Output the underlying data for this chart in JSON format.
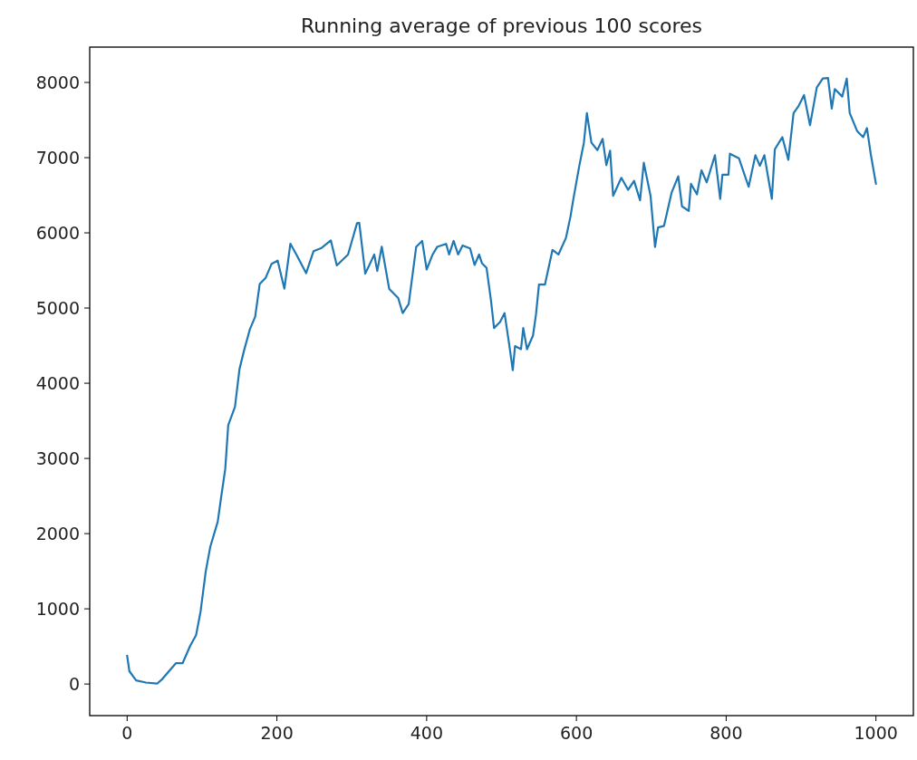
{
  "chart_data": {
    "type": "line",
    "title": "Running average of previous 100 scores",
    "xlim": [
      -50,
      1050
    ],
    "ylim": [
      -420,
      8470
    ],
    "xticks": [
      0,
      200,
      400,
      600,
      800,
      1000
    ],
    "yticks": [
      0,
      1000,
      2000,
      3000,
      4000,
      5000,
      6000,
      7000,
      8000
    ],
    "grid": false,
    "series": [
      {
        "color": "#1f77b4",
        "x": [
          0,
          3,
          12,
          25,
          40,
          47,
          65,
          74,
          84,
          92,
          98,
          105,
          111,
          121,
          125,
          131,
          135,
          144,
          150,
          156,
          164,
          171,
          177,
          185,
          193,
          201,
          210,
          218,
          226,
          239,
          249,
          259,
          272,
          280,
          295,
          307,
          310,
          318,
          330,
          334,
          340,
          350,
          362,
          368,
          376,
          386,
          394,
          400,
          408,
          414,
          426,
          430,
          436,
          442,
          448,
          458,
          464,
          470,
          474,
          480,
          486,
          490,
          498,
          504,
          510,
          515,
          518,
          526,
          529,
          534,
          542,
          546,
          550,
          558,
          568,
          576,
          586,
          592,
          596,
          604,
          610,
          614,
          620,
          628,
          635,
          640,
          645,
          649,
          660,
          669,
          677,
          685,
          690,
          699,
          705,
          709,
          717,
          727,
          736,
          741,
          750,
          753,
          761,
          767,
          774,
          785,
          792,
          795,
          803,
          805,
          817,
          830,
          839,
          845,
          851,
          861,
          865,
          875,
          883,
          890,
          897,
          904,
          912,
          921,
          929,
          936,
          941,
          945,
          955,
          961,
          965,
          975,
          983,
          988,
          993,
          1000
        ],
        "values": [
          377,
          170,
          48,
          20,
          5,
          67,
          276,
          276,
          504,
          648,
          960,
          1500,
          1823,
          2159,
          2447,
          2858,
          3442,
          3686,
          4186,
          4430,
          4720,
          4885,
          5319,
          5402,
          5589,
          5630,
          5257,
          5856,
          5712,
          5464,
          5757,
          5795,
          5900,
          5567,
          5712,
          6128,
          6132,
          5457,
          5712,
          5493,
          5817,
          5253,
          5133,
          4933,
          5053,
          5813,
          5893,
          5513,
          5712,
          5813,
          5853,
          5712,
          5893,
          5712,
          5832,
          5793,
          5573,
          5712,
          5593,
          5533,
          5093,
          4734,
          4813,
          4933,
          4533,
          4174,
          4494,
          4453,
          4734,
          4453,
          4633,
          4914,
          5313,
          5313,
          5772,
          5712,
          5933,
          6213,
          6453,
          6900,
          7200,
          7592,
          7200,
          7100,
          7250,
          6900,
          7092,
          6492,
          6732,
          6572,
          6692,
          6432,
          6932,
          6492,
          5813,
          6072,
          6093,
          6532,
          6752,
          6353,
          6292,
          6652,
          6512,
          6832,
          6672,
          7032,
          6452,
          6772,
          6772,
          7052,
          6992,
          6612,
          7032,
          6892,
          7032,
          6452,
          7112,
          7272,
          6972,
          7592,
          7692,
          7832,
          7432,
          7932,
          8052,
          8060,
          7652,
          7912,
          7812,
          8052,
          7592,
          7352,
          7272,
          7392,
          7052,
          6653
        ]
      }
    ]
  }
}
